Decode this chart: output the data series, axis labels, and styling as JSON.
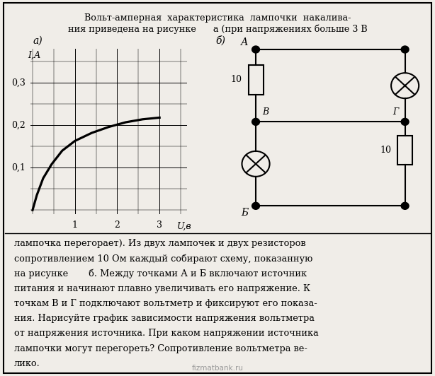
{
  "background_color": "#f0ede8",
  "title_line1": "Вольт-амперная  характеристика  лампочки  накалива-",
  "title_line2": "ния приведена на рисунке      а (при напряжениях больше 3 В",
  "label_a": "а)",
  "label_b": "б)",
  "graph_xlabel": "U,в",
  "graph_ylabel": "I,А",
  "graph_xticks": [
    1,
    2,
    3
  ],
  "graph_yticks": [
    0.1,
    0.2,
    0.3
  ],
  "graph_ytick_labels": [
    "0,3",
    "0,2",
    "0,1"
  ],
  "graph_xtick_labels": [
    "1",
    "2",
    "3"
  ],
  "curve_u": [
    0.0,
    0.1,
    0.25,
    0.45,
    0.7,
    1.0,
    1.4,
    1.8,
    2.2,
    2.6,
    3.0
  ],
  "curve_i": [
    0.0,
    0.035,
    0.075,
    0.108,
    0.14,
    0.163,
    0.182,
    0.196,
    0.207,
    0.214,
    0.218
  ],
  "bottom_text_line1": "лампочка перегорает). Из двух лампочек и двух резисторов",
  "bottom_text_line2": "сопротивлением 10 Ом каждый собирают схему, показанную",
  "bottom_text_line3": "на рисунке       б. Между точками А и Б включают источник",
  "bottom_text_line4": "питания и начинают плавно увеличивать его напряжение. К",
  "bottom_text_line5": "точкам В и Г подключают вольтметр и фиксируют его показа-",
  "bottom_text_line6": "ния. Нарисуйте график зависимости напряжения вольтметра",
  "bottom_text_line7": "от напряжения источника. При каком напряжении источника",
  "bottom_text_line8": "лампочки могут перегореть? Сопротивление вольтметра ве-",
  "bottom_text_line9": "лико.",
  "watermark": "fizmatbank.ru"
}
